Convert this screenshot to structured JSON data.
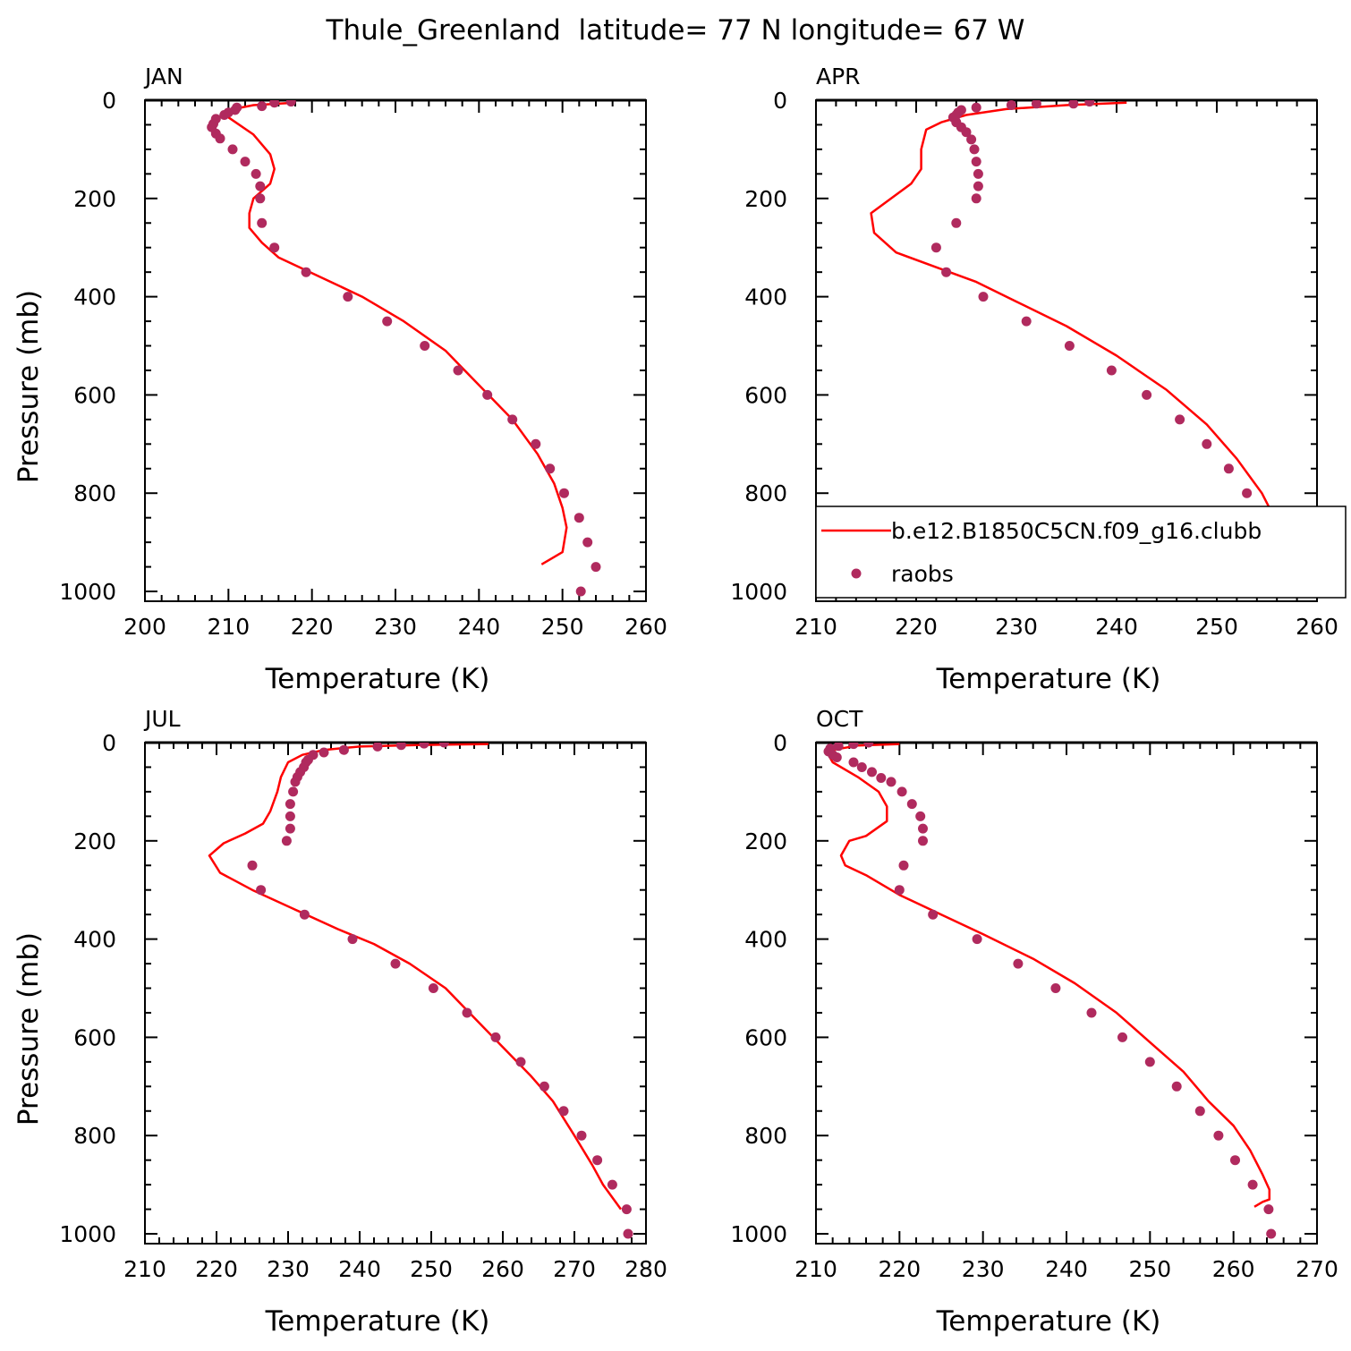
{
  "figure": {
    "title": "Thule_Greenland  latitude= 77 N longitude= 67 W"
  },
  "colors": {
    "model_line": "#ff0000",
    "obs_markers": "#b02a5e",
    "axes": "#000000"
  },
  "legend": {
    "placement": "inside APR panel, lower right",
    "model_label": "b.e12.B1850C5CN.f09_g16.clubb",
    "obs_label": "raobs"
  },
  "chart_data": [
    {
      "type": "line",
      "panel_label": "JAN",
      "xlabel": "Temperature (K)",
      "ylabel": "Pressure (mb)",
      "xlim": [
        200,
        260
      ],
      "ylim": [
        1020,
        0
      ],
      "x_ticks": [
        200,
        210,
        220,
        230,
        240,
        250,
        260
      ],
      "y_ticks": [
        0,
        200,
        400,
        600,
        800,
        1000
      ],
      "series": [
        {
          "name": "b.e12.B1850C5CN.f09_g16.clubb",
          "style": "line",
          "points": [
            [
              218,
              5
            ],
            [
              213,
              10
            ],
            [
              210,
              20
            ],
            [
              210,
              35
            ],
            [
              213,
              70
            ],
            [
              215,
              110
            ],
            [
              215.5,
              140
            ],
            [
              215,
              170
            ],
            [
              213,
              200
            ],
            [
              212.5,
              230
            ],
            [
              212.5,
              260
            ],
            [
              214,
              290
            ],
            [
              216,
              320
            ],
            [
              221,
              360
            ],
            [
              226,
              400
            ],
            [
              231,
              450
            ],
            [
              236,
              510
            ],
            [
              240,
              580
            ],
            [
              244,
              650
            ],
            [
              247,
              720
            ],
            [
              249,
              780
            ],
            [
              250,
              830
            ],
            [
              250.5,
              870
            ],
            [
              250,
              920
            ],
            [
              248.5,
              935
            ],
            [
              247.5,
              945
            ]
          ]
        },
        {
          "name": "raobs",
          "style": "markers",
          "points": [
            [
              217.5,
              3
            ],
            [
              215.5,
              5
            ],
            [
              214,
              12
            ],
            [
              211,
              15
            ],
            [
              210.8,
              20
            ],
            [
              210,
              25
            ],
            [
              209.5,
              30
            ],
            [
              208.5,
              38
            ],
            [
              208.2,
              48
            ],
            [
              208,
              55
            ],
            [
              208.5,
              68
            ],
            [
              209,
              78
            ],
            [
              210.5,
              100
            ],
            [
              212,
              125
            ],
            [
              213.3,
              150
            ],
            [
              213.8,
              175
            ],
            [
              213.8,
              200
            ],
            [
              214,
              250
            ],
            [
              215.5,
              300
            ],
            [
              219.3,
              350
            ],
            [
              224.3,
              400
            ],
            [
              229,
              450
            ],
            [
              233.5,
              500
            ],
            [
              237.5,
              550
            ],
            [
              241,
              600
            ],
            [
              244,
              650
            ],
            [
              246.8,
              700
            ],
            [
              248.5,
              750
            ],
            [
              250.2,
              800
            ],
            [
              252,
              850
            ],
            [
              253,
              900
            ],
            [
              254,
              950
            ],
            [
              252.2,
              1000
            ]
          ]
        }
      ]
    },
    {
      "type": "line",
      "panel_label": "APR",
      "xlabel": "Temperature (K)",
      "ylabel": "",
      "xlim": [
        210,
        260
      ],
      "ylim": [
        1020,
        0
      ],
      "x_ticks": [
        210,
        220,
        230,
        240,
        250,
        260
      ],
      "y_ticks": [
        0,
        200,
        400,
        600,
        800,
        1000
      ],
      "series": [
        {
          "name": "b.e12.B1850C5CN.f09_g16.clubb",
          "style": "line",
          "points": [
            [
              241,
              5
            ],
            [
              235,
              10
            ],
            [
              229,
              18
            ],
            [
              225,
              30
            ],
            [
              222.5,
              45
            ],
            [
              221,
              60
            ],
            [
              220.5,
              100
            ],
            [
              220.5,
              140
            ],
            [
              219.5,
              170
            ],
            [
              217.5,
              200
            ],
            [
              215.5,
              230
            ],
            [
              215.8,
              270
            ],
            [
              218,
              310
            ],
            [
              222,
              340
            ],
            [
              226,
              370
            ],
            [
              230,
              410
            ],
            [
              235,
              460
            ],
            [
              240,
              520
            ],
            [
              245,
              590
            ],
            [
              249,
              660
            ],
            [
              252,
              730
            ],
            [
              254.5,
              800
            ],
            [
              256,
              860
            ],
            [
              256,
              900
            ],
            [
              255,
              920
            ],
            [
              253,
              935
            ]
          ]
        },
        {
          "name": "raobs",
          "style": "markers",
          "points": [
            [
              237.3,
              3
            ],
            [
              235.7,
              7
            ],
            [
              232,
              7
            ],
            [
              229.5,
              10
            ],
            [
              226,
              15
            ],
            [
              224.5,
              20
            ],
            [
              224.2,
              25
            ],
            [
              224,
              30
            ],
            [
              223.7,
              35
            ],
            [
              224,
              45
            ],
            [
              224.5,
              55
            ],
            [
              225,
              65
            ],
            [
              225.5,
              80
            ],
            [
              225.8,
              100
            ],
            [
              226,
              125
            ],
            [
              226.2,
              150
            ],
            [
              226.2,
              175
            ],
            [
              226,
              200
            ],
            [
              224,
              250
            ],
            [
              222,
              300
            ],
            [
              223,
              350
            ],
            [
              226.7,
              400
            ],
            [
              231,
              450
            ],
            [
              235.3,
              500
            ],
            [
              239.5,
              550
            ],
            [
              243,
              600
            ],
            [
              246.3,
              650
            ],
            [
              249,
              700
            ],
            [
              251.2,
              750
            ],
            [
              253,
              800
            ],
            [
              254.3,
              850
            ],
            [
              256.2,
              900
            ],
            [
              257.2,
              950
            ],
            [
              257.2,
              1000
            ]
          ]
        }
      ]
    },
    {
      "type": "line",
      "panel_label": "JUL",
      "xlabel": "Temperature (K)",
      "ylabel": "Pressure (mb)",
      "xlim": [
        210,
        280
      ],
      "ylim": [
        1020,
        0
      ],
      "x_ticks": [
        210,
        220,
        230,
        240,
        250,
        260,
        270,
        280
      ],
      "y_ticks": [
        0,
        200,
        400,
        600,
        800,
        1000
      ],
      "series": [
        {
          "name": "b.e12.B1850C5CN.f09_g16.clubb",
          "style": "line",
          "points": [
            [
              258,
              3
            ],
            [
              248,
              5
            ],
            [
              240,
              8
            ],
            [
              235,
              15
            ],
            [
              232,
              25
            ],
            [
              230,
              40
            ],
            [
              229,
              70
            ],
            [
              228.5,
              100
            ],
            [
              227.5,
              140
            ],
            [
              226.5,
              165
            ],
            [
              224,
              185
            ],
            [
              221,
              205
            ],
            [
              219,
              230
            ],
            [
              220.5,
              265
            ],
            [
              225,
              300
            ],
            [
              231,
              340
            ],
            [
              237,
              380
            ],
            [
              242,
              410
            ],
            [
              247,
              450
            ],
            [
              252,
              500
            ],
            [
              256,
              560
            ],
            [
              260,
              620
            ],
            [
              264,
              680
            ],
            [
              267,
              730
            ],
            [
              270,
              800
            ],
            [
              272.5,
              860
            ],
            [
              274,
              900
            ],
            [
              275.5,
              930
            ],
            [
              276.5,
              950
            ]
          ]
        },
        {
          "name": "raobs",
          "style": "markers",
          "points": [
            [
              251.8,
              0
            ],
            [
              249,
              2
            ],
            [
              245.8,
              5
            ],
            [
              242.5,
              8
            ],
            [
              237.8,
              15
            ],
            [
              235,
              20
            ],
            [
              233.5,
              25
            ],
            [
              232.8,
              35
            ],
            [
              232.5,
              40
            ],
            [
              232.2,
              50
            ],
            [
              231.7,
              60
            ],
            [
              231.3,
              70
            ],
            [
              231,
              80
            ],
            [
              230.7,
              100
            ],
            [
              230.3,
              125
            ],
            [
              230.3,
              150
            ],
            [
              230.3,
              175
            ],
            [
              229.8,
              200
            ],
            [
              225,
              250
            ],
            [
              226.2,
              300
            ],
            [
              232.3,
              350
            ],
            [
              239,
              400
            ],
            [
              245,
              450
            ],
            [
              250.3,
              500
            ],
            [
              255,
              550
            ],
            [
              259,
              600
            ],
            [
              262.5,
              650
            ],
            [
              265.8,
              700
            ],
            [
              268.5,
              750
            ],
            [
              271,
              800
            ],
            [
              273.2,
              850
            ],
            [
              275.3,
              900
            ],
            [
              277.3,
              950
            ],
            [
              277.5,
              1000
            ]
          ]
        }
      ]
    },
    {
      "type": "line",
      "panel_label": "OCT",
      "xlabel": "Temperature (K)",
      "ylabel": "",
      "xlim": [
        210,
        270
      ],
      "ylim": [
        1020,
        0
      ],
      "x_ticks": [
        210,
        220,
        230,
        240,
        250,
        260,
        270
      ],
      "y_ticks": [
        0,
        200,
        400,
        600,
        800,
        1000
      ],
      "series": [
        {
          "name": "b.e12.B1850C5CN.f09_g16.clubb",
          "style": "line",
          "points": [
            [
              220,
              3
            ],
            [
              215,
              6
            ],
            [
              212,
              15
            ],
            [
              211.5,
              25
            ],
            [
              212,
              40
            ],
            [
              215,
              70
            ],
            [
              217.5,
              100
            ],
            [
              218.5,
              130
            ],
            [
              218.5,
              160
            ],
            [
              216,
              190
            ],
            [
              214,
              200
            ],
            [
              213,
              230
            ],
            [
              213.5,
              250
            ],
            [
              216,
              270
            ],
            [
              220,
              310
            ],
            [
              225,
              350
            ],
            [
              230,
              390
            ],
            [
              236,
              440
            ],
            [
              241,
              490
            ],
            [
              246,
              550
            ],
            [
              250,
              610
            ],
            [
              254,
              670
            ],
            [
              257,
              730
            ],
            [
              260,
              780
            ],
            [
              262,
              830
            ],
            [
              263.5,
              880
            ],
            [
              264.3,
              910
            ],
            [
              264.3,
              930
            ],
            [
              263.5,
              935
            ],
            [
              262.5,
              945
            ]
          ]
        },
        {
          "name": "raobs",
          "style": "markers",
          "points": [
            [
              216.3,
              0
            ],
            [
              214.5,
              3
            ],
            [
              212.7,
              7
            ],
            [
              211.7,
              12
            ],
            [
              211.5,
              18
            ],
            [
              212,
              25
            ],
            [
              212.5,
              30
            ],
            [
              214.5,
              40
            ],
            [
              215.5,
              50
            ],
            [
              216.7,
              60
            ],
            [
              217.8,
              72
            ],
            [
              219,
              80
            ],
            [
              220.3,
              100
            ],
            [
              221.5,
              125
            ],
            [
              222.5,
              150
            ],
            [
              222.8,
              175
            ],
            [
              222.8,
              200
            ],
            [
              220.5,
              250
            ],
            [
              220,
              300
            ],
            [
              224,
              350
            ],
            [
              229.3,
              400
            ],
            [
              234.2,
              450
            ],
            [
              238.7,
              500
            ],
            [
              243,
              550
            ],
            [
              246.7,
              600
            ],
            [
              250,
              650
            ],
            [
              253.2,
              700
            ],
            [
              256,
              750
            ],
            [
              258.2,
              800
            ],
            [
              260.2,
              850
            ],
            [
              262.3,
              900
            ],
            [
              264.2,
              950
            ],
            [
              264.5,
              1000
            ]
          ]
        }
      ]
    }
  ]
}
